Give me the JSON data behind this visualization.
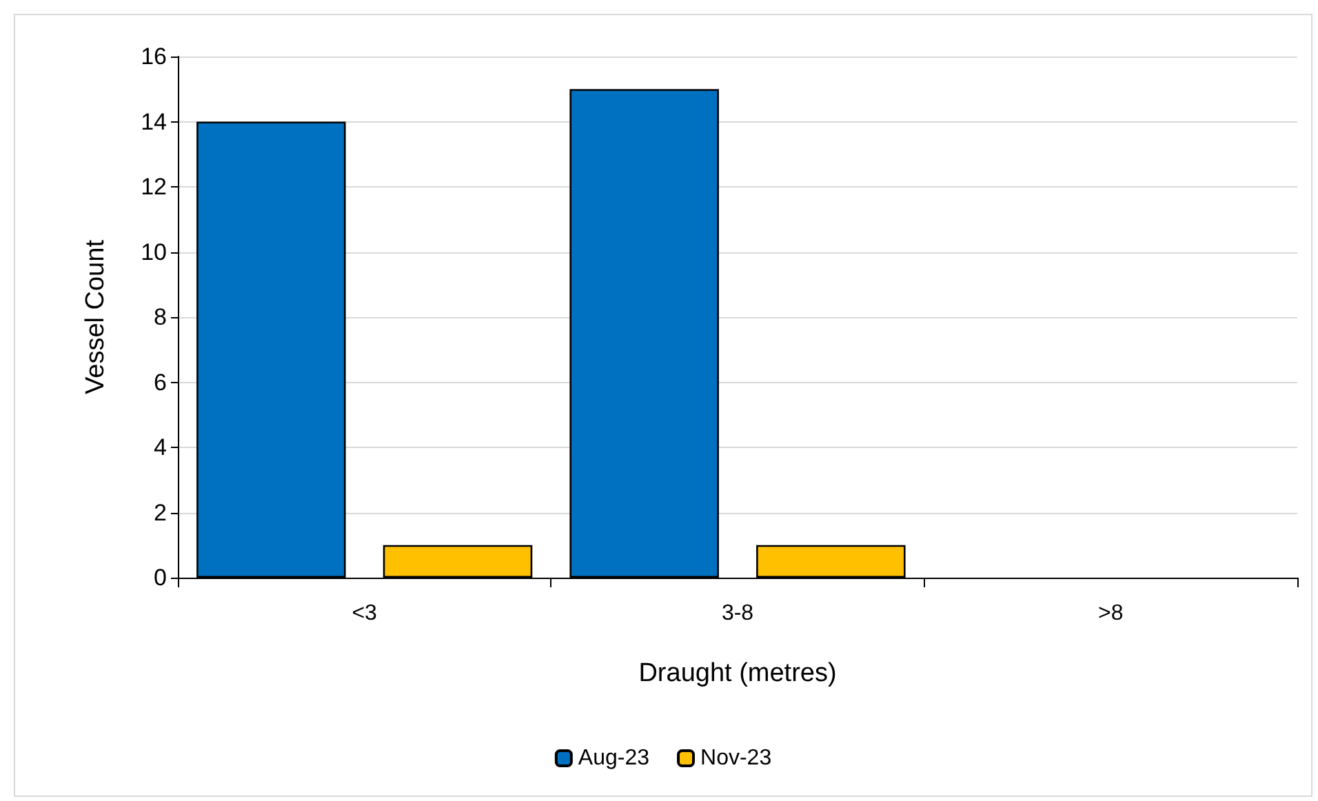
{
  "chart_data": {
    "type": "bar",
    "xlabel": "Draught (metres)",
    "ylabel": "Vessel Count",
    "categories": [
      "<3",
      "3-8",
      ">8"
    ],
    "series": [
      {
        "name": "Aug-23",
        "color": "#0070c0",
        "values": [
          14,
          15,
          0
        ]
      },
      {
        "name": "Nov-23",
        "color": "#ffc000",
        "values": [
          1,
          1,
          0
        ]
      }
    ],
    "ylim": [
      0,
      16
    ],
    "yticks": [
      0,
      2,
      4,
      6,
      8,
      10,
      12,
      14,
      16
    ],
    "grid": "y",
    "legend": "bottom"
  }
}
